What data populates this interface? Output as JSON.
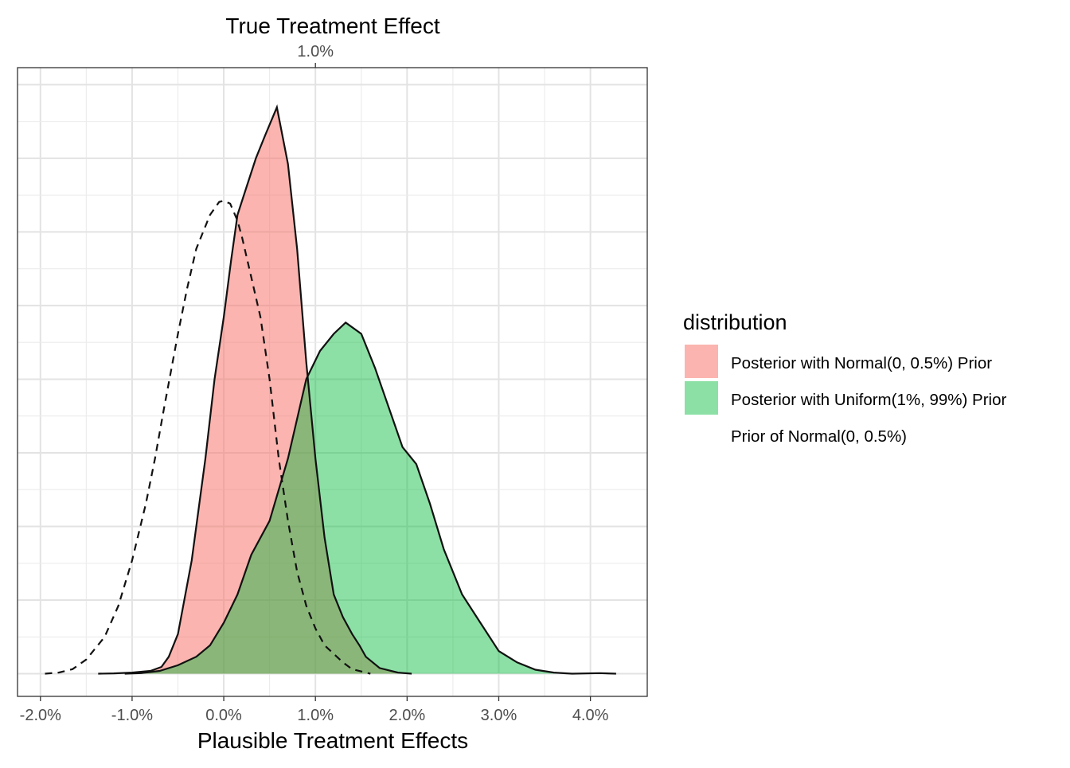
{
  "chart_data": {
    "type": "area",
    "title": "",
    "xlabel": "Plausible Treatment Effects",
    "ylabel": "",
    "xlim": [
      -0.0225,
      0.0462
    ],
    "ylim": [
      -0.04,
      1.07
    ],
    "x_tick_values": [
      -0.02,
      -0.01,
      0.0,
      0.01,
      0.02,
      0.03,
      0.04
    ],
    "x_tick_labels": [
      "-2.0%",
      "-1.0%",
      "0.0%",
      "1.0%",
      "2.0%",
      "3.0%",
      "4.0%"
    ],
    "y_ticks_labeled": false,
    "grid": true,
    "reference_line": {
      "x": 0.01,
      "axis_title": "True Treatment Effect",
      "label": "1.0%"
    },
    "legend": {
      "title": "distribution",
      "position": "right",
      "items": [
        {
          "label": "Posterior with Normal(0, 0.5%) Prior",
          "fill": "#F8766D",
          "alpha": 0.55,
          "linetype": "solid"
        },
        {
          "label": "Posterior with Uniform(1%, 99%) Prior",
          "fill": "#00BA38",
          "alpha": 0.45,
          "linetype": "solid"
        },
        {
          "label": "Prior of Normal(0, 0.5%)",
          "fill": "none",
          "alpha": 0,
          "linetype": "dashed"
        }
      ]
    },
    "series": [
      {
        "name": "Posterior with Normal(0, 0.5%) Prior",
        "fill": "#F8766D",
        "points": [
          [
            -0.0137,
            0.0
          ],
          [
            -0.012,
            0.0006
          ],
          [
            -0.01,
            0.002
          ],
          [
            -0.008,
            0.005
          ],
          [
            -0.0068,
            0.012
          ],
          [
            -0.006,
            0.03
          ],
          [
            -0.005,
            0.07
          ],
          [
            -0.0035,
            0.2
          ],
          [
            -0.002,
            0.38
          ],
          [
            -0.001,
            0.52
          ],
          [
            0.0,
            0.63
          ],
          [
            0.0008,
            0.73
          ],
          [
            0.0015,
            0.81
          ],
          [
            0.0025,
            0.86
          ],
          [
            0.0035,
            0.91
          ],
          [
            0.0045,
            0.95
          ],
          [
            0.0058,
            1.0
          ],
          [
            0.007,
            0.9
          ],
          [
            0.008,
            0.75
          ],
          [
            0.009,
            0.55
          ],
          [
            0.01,
            0.38
          ],
          [
            0.011,
            0.24
          ],
          [
            0.012,
            0.14
          ],
          [
            0.013,
            0.1
          ],
          [
            0.014,
            0.07
          ],
          [
            0.0148,
            0.05
          ],
          [
            0.0155,
            0.03
          ],
          [
            0.017,
            0.01
          ],
          [
            0.019,
            0.002
          ],
          [
            0.0205,
            0.0
          ]
        ]
      },
      {
        "name": "Posterior with Uniform(1%, 99%) Prior",
        "fill": "#00BA38",
        "points": [
          [
            -0.0108,
            0.0
          ],
          [
            -0.009,
            0.001
          ],
          [
            -0.007,
            0.005
          ],
          [
            -0.005,
            0.015
          ],
          [
            -0.003,
            0.03
          ],
          [
            -0.0015,
            0.05
          ],
          [
            0.0,
            0.09
          ],
          [
            0.0015,
            0.14
          ],
          [
            0.003,
            0.21
          ],
          [
            0.005,
            0.27
          ],
          [
            0.007,
            0.38
          ],
          [
            0.009,
            0.52
          ],
          [
            0.0105,
            0.57
          ],
          [
            0.012,
            0.6
          ],
          [
            0.0133,
            0.62
          ],
          [
            0.015,
            0.6
          ],
          [
            0.0165,
            0.54
          ],
          [
            0.018,
            0.47
          ],
          [
            0.0195,
            0.4
          ],
          [
            0.021,
            0.37
          ],
          [
            0.0225,
            0.3
          ],
          [
            0.024,
            0.22
          ],
          [
            0.026,
            0.14
          ],
          [
            0.028,
            0.09
          ],
          [
            0.03,
            0.04
          ],
          [
            0.032,
            0.02
          ],
          [
            0.034,
            0.007
          ],
          [
            0.036,
            0.002
          ],
          [
            0.038,
            0.0
          ],
          [
            0.041,
            0.001
          ],
          [
            0.0428,
            0.0
          ]
        ]
      },
      {
        "name": "Prior of Normal(0, 0.5%)",
        "fill": "none",
        "points": [
          [
            -0.0195,
            0.0
          ],
          [
            -0.018,
            0.002
          ],
          [
            -0.0165,
            0.008
          ],
          [
            -0.015,
            0.025
          ],
          [
            -0.013,
            0.065
          ],
          [
            -0.0115,
            0.12
          ],
          [
            -0.01,
            0.2
          ],
          [
            -0.0085,
            0.3
          ],
          [
            -0.0075,
            0.38
          ],
          [
            -0.0065,
            0.47
          ],
          [
            -0.005,
            0.6
          ],
          [
            -0.004,
            0.68
          ],
          [
            -0.003,
            0.75
          ],
          [
            -0.0015,
            0.81
          ],
          [
            -0.0005,
            0.833
          ],
          [
            0.0,
            0.835
          ],
          [
            0.0007,
            0.83
          ],
          [
            0.0015,
            0.8
          ],
          [
            0.002,
            0.77
          ],
          [
            0.003,
            0.7
          ],
          [
            0.004,
            0.63
          ],
          [
            0.005,
            0.52
          ],
          [
            0.006,
            0.38
          ],
          [
            0.007,
            0.27
          ],
          [
            0.008,
            0.18
          ],
          [
            0.009,
            0.12
          ],
          [
            0.01,
            0.08
          ],
          [
            0.011,
            0.05
          ],
          [
            0.012,
            0.035
          ],
          [
            0.013,
            0.02
          ],
          [
            0.014,
            0.008
          ],
          [
            0.016,
            0.0
          ]
        ]
      }
    ]
  }
}
